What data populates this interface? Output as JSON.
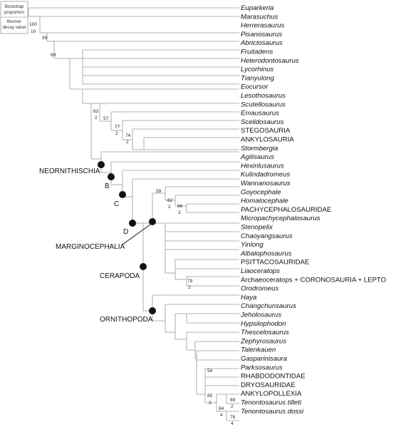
{
  "legend": {
    "bootstrap_line1": "Bootstrap",
    "bootstrap_line2": "proportion",
    "bremer_line1": "Bremer",
    "bremer_line2": "decay value"
  },
  "taxa": [
    {
      "name": "Euparkeria",
      "italic": true
    },
    {
      "name": "Marasuchus",
      "italic": true
    },
    {
      "name": "Herrerasaurus",
      "italic": true
    },
    {
      "name": "Pisanosaurus",
      "italic": true
    },
    {
      "name": "Abrictosaurus",
      "italic": true
    },
    {
      "name": "Fruitadens",
      "italic": true
    },
    {
      "name": "Heterodontosaurus",
      "italic": true
    },
    {
      "name": "Lycorhinus",
      "italic": true
    },
    {
      "name": "Tianyulong",
      "italic": true
    },
    {
      "name": "Eocursor",
      "italic": true
    },
    {
      "name": "Lesothosaurus",
      "italic": true
    },
    {
      "name": "Scutellosaurus",
      "italic": true
    },
    {
      "name": "Emausaurus",
      "italic": true
    },
    {
      "name": "Scelidosaurus",
      "italic": true
    },
    {
      "name": "STEGOSAURIA",
      "italic": false
    },
    {
      "name": "ANKYLOSAURIA",
      "italic": false
    },
    {
      "name": "Stormbergia",
      "italic": true
    },
    {
      "name": "Agilisaurus",
      "italic": true
    },
    {
      "name": "Hexinlusaurus",
      "italic": true
    },
    {
      "name": "Kulindadromeus",
      "italic": true
    },
    {
      "name": "Wannanosaurus",
      "italic": true
    },
    {
      "name": "Goyocephale",
      "italic": true
    },
    {
      "name": "Homalocephale",
      "italic": true
    },
    {
      "name": "PACHYCEPHALOSAURIDAE",
      "italic": false
    },
    {
      "name": "Micropachycephalosaurus",
      "italic": true
    },
    {
      "name": "Stenopelix",
      "italic": true
    },
    {
      "name": "Chaoyangsaurus",
      "italic": true
    },
    {
      "name": "Yinlong",
      "italic": true
    },
    {
      "name": "Albalophosaurus",
      "italic": true
    },
    {
      "name": "PSITTACOSAURIDAE",
      "italic": false
    },
    {
      "name": "Liaoceratops",
      "italic": true
    },
    {
      "name": "Archaeoceratops + CORONOSAURIA + LEPTO",
      "italic": false
    },
    {
      "name": "Orodromeus",
      "italic": true
    },
    {
      "name": "Haya",
      "italic": true
    },
    {
      "name": "Changchunsaurus",
      "italic": true
    },
    {
      "name": "Jeholosaurus",
      "italic": true
    },
    {
      "name": "Hypsilophodon",
      "italic": true
    },
    {
      "name": "Thescelosaurus",
      "italic": true
    },
    {
      "name": "Zephyrosaurus",
      "italic": true
    },
    {
      "name": "Talenkauen",
      "italic": true
    },
    {
      "name": "Gasparinisaura",
      "italic": true
    },
    {
      "name": "Parksosaurus",
      "italic": true
    },
    {
      "name": "RHABDODONTIDAE",
      "italic": false
    },
    {
      "name": "DRYOSAURIDAE",
      "italic": false
    },
    {
      "name": "ANKYLOPOLLEXIA",
      "italic": false
    },
    {
      "name": "Tenontosaurus tilleti",
      "italic": true
    },
    {
      "name": "Tenontosaurus dossi",
      "italic": true
    }
  ],
  "support_values": [
    "100",
    "10",
    "59",
    "69",
    "63",
    "2",
    "57",
    "77",
    "2",
    "74",
    "2",
    "59",
    "62",
    "2",
    "66",
    "2",
    "79",
    "2",
    "54",
    "85",
    "3",
    "84",
    "4",
    "89",
    "2",
    "78",
    "4"
  ],
  "clade_labels": {
    "neornithischia": "NEORNITHISCHIA",
    "b": "B",
    "c": "C",
    "d": "D",
    "marginocephalia": "MARGINOCEPHALIA",
    "cerapoda": "CERAPODA",
    "ornithopoda": "ORNITHOPODA"
  }
}
